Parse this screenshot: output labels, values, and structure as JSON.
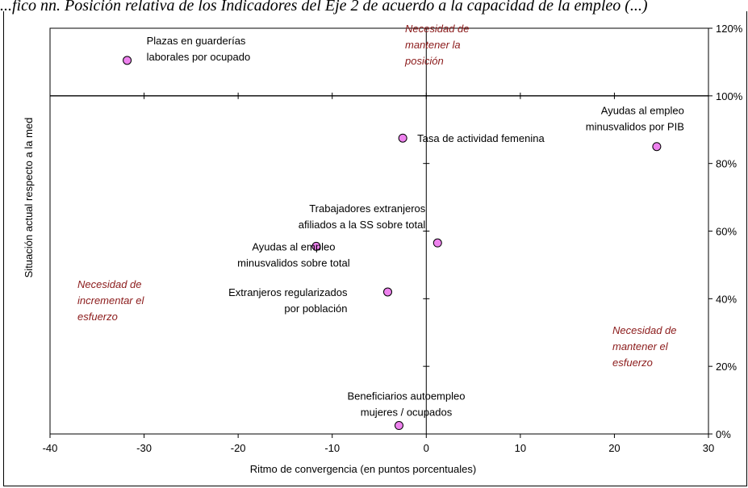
{
  "page": {
    "title": "...fico nn. Posición relativa de los Indicadores del Eje 2 de acuerdo a la capacidad de la empleo (...)"
  },
  "chart_data": {
    "type": "scatter",
    "title": "",
    "xlabel": "Ritmo de convergencia (en puntos porcentuales)",
    "ylabel": "Situación actual respecto a la med",
    "xlim": [
      -40,
      30
    ],
    "ylim": [
      0,
      120
    ],
    "x_ticks": [
      -40,
      -30,
      -20,
      -10,
      0,
      10,
      20,
      30
    ],
    "y_ticks": [
      0,
      20,
      40,
      60,
      80,
      100,
      120
    ],
    "y_tick_labels": [
      "0%",
      "20%",
      "40%",
      "60%",
      "80%",
      "100%",
      "120%"
    ],
    "grid": false,
    "crosshair": {
      "x": 0,
      "y": 100
    },
    "marker_color": "#ee82ee",
    "annotation_color": "#8b1a1a",
    "points": [
      {
        "x": -31.8,
        "y": 110.5,
        "label": [
          "Plazas en guarderías",
          "laborales por ocupado"
        ]
      },
      {
        "x": -2.5,
        "y": 87.5,
        "label": [
          "Tasa  de actividad femenina"
        ]
      },
      {
        "x": 24.5,
        "y": 85.0,
        "label": [
          "Ayudas al empleo",
          "minusvalidos por PIB"
        ]
      },
      {
        "x": 1.2,
        "y": 56.5,
        "label": [
          "Trabajadores extranjeros",
          "afiliados a la SS sobre total"
        ]
      },
      {
        "x": -11.7,
        "y": 55.5,
        "label": [
          "Ayudas al empleo",
          "minusvalidos sobre total"
        ]
      },
      {
        "x": -4.1,
        "y": 42.0,
        "label": [
          "Extranjeros regularizados",
          "por población"
        ]
      },
      {
        "x": -2.9,
        "y": 2.5,
        "label": [
          "Beneficiarios autoempleo",
          "mujeres / ocupados"
        ]
      }
    ],
    "annotations": [
      {
        "lines": [
          "Necesidad de",
          "mantener la",
          "posición"
        ]
      },
      {
        "lines": [
          "Necesidad de",
          "incrementar el",
          "esfuerzo"
        ]
      },
      {
        "lines": [
          "Necesidad de",
          "mantener el",
          "esfuerzo"
        ]
      }
    ]
  }
}
